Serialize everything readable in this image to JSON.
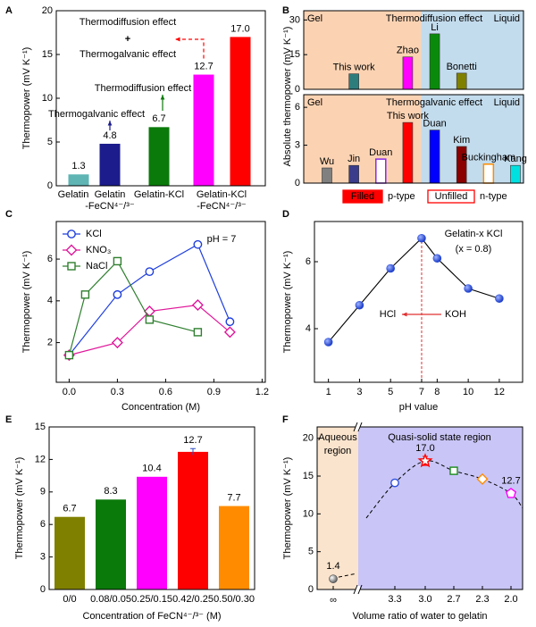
{
  "chart_data": [
    {
      "panel": "A",
      "type": "bar",
      "ylabel": "Thermopower (mV K⁻¹)",
      "categories": [
        [
          "Gelatin"
        ],
        [
          "Gelatin",
          "-FeCN⁴⁻/³⁻"
        ],
        [
          "Gelatin-KCl"
        ],
        [
          "Gelatin-KCl",
          "-FeCN⁴⁻/³⁻"
        ],
        null
      ],
      "values": [
        1.3,
        4.8,
        6.7,
        12.7,
        17.0
      ],
      "value_labels": [
        "1.3",
        "4.8",
        "6.7",
        "12.7",
        "17.0"
      ],
      "colors": [
        "#5fb4b4",
        "#1c1c8c",
        "#0a7a0a",
        "#ff00ff",
        "#ff0000"
      ],
      "ylim": [
        0,
        20
      ],
      "yticks": [
        0,
        5,
        10,
        15,
        20
      ],
      "annotations": [
        {
          "text": "Thermodiffusion effect",
          "color": "#0a7a0a"
        },
        {
          "text": "+",
          "color": "#000000"
        },
        {
          "text": "Thermogalvanic effect",
          "color": "#1c1c8c"
        },
        {
          "text": "Thermodiffusion effect",
          "color": "#0a7a0a"
        },
        {
          "text": "Thermogalvanic effect",
          "color": "#1c1c8c"
        }
      ],
      "arrow_color": "#ff0000"
    },
    {
      "panel": "B",
      "type": "bar",
      "ylabel": "Absolute thermopower (mV K⁻¹)",
      "regions": [
        "Gel",
        "Liquid"
      ],
      "effect": "Thermodiffusion effect",
      "effect_color": "#1a8a1a",
      "categories": [
        null,
        "This work",
        null,
        "Zhao",
        "Li",
        "Bonetti",
        null,
        null
      ],
      "values": [
        null,
        6.7,
        null,
        14,
        24,
        7,
        null,
        null
      ],
      "colors": [
        null,
        "#2e7d7d",
        null,
        "#ff00ff",
        "#0a8a0a",
        "#808000",
        null,
        null
      ],
      "filled": [
        null,
        true,
        null,
        true,
        true,
        true,
        null,
        null
      ],
      "ylim": [
        0,
        34
      ],
      "yticks": [
        0,
        15,
        30
      ]
    },
    {
      "type": "bar",
      "regions": [
        "Gel",
        "Liquid"
      ],
      "effect": "Thermogalvanic effect",
      "effect_color": "#1c1c8c",
      "categories": [
        "Wu",
        "Jin",
        "Duan",
        "This work",
        "Duan",
        "Kim",
        "Buckingham",
        "Kang"
      ],
      "values": [
        1.2,
        1.4,
        1.9,
        4.8,
        4.2,
        2.9,
        1.5,
        1.4
      ],
      "colors": [
        "#808080",
        "#3c3c8c",
        "#8a2be2",
        "#ff0000",
        "#0000ff",
        "#8b0000",
        "#ff8c00",
        "#00e0e0"
      ],
      "filled": [
        true,
        true,
        false,
        true,
        true,
        true,
        false,
        true
      ],
      "ylim": [
        0,
        7
      ],
      "yticks": [
        0,
        3,
        6
      ],
      "legend": [
        {
          "box": "Filled",
          "kind": "p-type"
        },
        {
          "box": "Unfilled",
          "kind": "n-type"
        }
      ],
      "legend_color": "#ff0000"
    },
    {
      "panel": "C",
      "type": "line",
      "xlabel": "Concentration (M)",
      "ylabel": "Thermopower (mV K⁻¹)",
      "xlim": [
        -0.08,
        1.22
      ],
      "ylim": [
        0.1,
        7.8
      ],
      "xticks": [
        {
          "value": 0,
          "label": "0.0"
        },
        0.3,
        0.6,
        0.9,
        1.2
      ],
      "yticks": [
        2,
        4,
        6
      ],
      "annotation": "pH = 7",
      "series": [
        {
          "name": "KCl",
          "color": "#1f3fdd",
          "marker": "circle",
          "x": [
            0,
            0.3,
            0.5,
            0.8,
            1.0
          ],
          "values": [
            1.4,
            4.3,
            5.4,
            6.7,
            3.0
          ]
        },
        {
          "name": "KNO₃",
          "color": "#e0189a",
          "marker": "diamond",
          "x": [
            0,
            0.3,
            0.5,
            0.8,
            1.0
          ],
          "values": [
            1.4,
            2.0,
            3.5,
            3.8,
            2.5
          ]
        },
        {
          "name": "NaCl",
          "color": "#2f7f2f",
          "marker": "square",
          "x": [
            0,
            0.1,
            0.3,
            0.5,
            0.8
          ],
          "values": [
            1.4,
            4.3,
            5.9,
            3.1,
            2.5
          ]
        }
      ]
    },
    {
      "panel": "D",
      "type": "line",
      "xlabel": "pH value",
      "ylabel": "Thermopower (mV K⁻¹)",
      "xlim": [
        0.1,
        13.5
      ],
      "ylim": [
        2.4,
        7.2
      ],
      "xticks": [
        1,
        3,
        5,
        7,
        8,
        10,
        12
      ],
      "yticks": [
        4,
        6
      ],
      "x": [
        1,
        3,
        5,
        7,
        8,
        10,
        12
      ],
      "values": [
        3.6,
        4.7,
        5.8,
        6.7,
        6.1,
        5.2,
        4.9
      ],
      "color": "#2b4fe0",
      "annotations": [
        "Gelatin-x KCl",
        "(x = 0.8)",
        "HCl",
        "KOH"
      ],
      "vline": 7,
      "vline_color": "#e03030"
    },
    {
      "panel": "E",
      "type": "bar",
      "xlabel": "Concentration of FeCN⁴⁻/³⁻ (M)",
      "ylabel": "Thermopower (mV K⁻¹)",
      "categories": [
        "0/0",
        "0.08/0.05",
        "0.25/0.15",
        "0.42/0.25",
        "0.50/0.30"
      ],
      "values": [
        6.7,
        8.3,
        10.4,
        12.7,
        7.7
      ],
      "errors": [
        null,
        null,
        null,
        0.3,
        null
      ],
      "colors": [
        "#808000",
        "#0a7a0a",
        "#ff00ff",
        "#ff0000",
        "#ff8c00"
      ],
      "ylim": [
        0,
        15
      ],
      "yticks": [
        0,
        3,
        6,
        9,
        12,
        15
      ]
    },
    {
      "panel": "F",
      "type": "scatter",
      "xlabel": "Volume ratio of water to gelatin",
      "ylabel": "Thermopower (mV K⁻¹)",
      "categories": [
        "∞",
        "3.3",
        "3.0",
        "2.7",
        "2.3",
        "2.0"
      ],
      "values": [
        1.4,
        14.1,
        17.0,
        15.7,
        14.6,
        12.7
      ],
      "value_labels": [
        "1.4",
        null,
        "17.0",
        null,
        null,
        "12.7"
      ],
      "errors": [
        null,
        null,
        0.6,
        null,
        null,
        null
      ],
      "markers": [
        "sphere",
        "circle",
        "star",
        "square",
        "diamond",
        "pentagon"
      ],
      "colors": [
        "#707070",
        "#2b4fe0",
        "#ff0000",
        "#1a8a1a",
        "#ff8c00",
        "#ff00ff"
      ],
      "regions": [
        [
          "Aqueous",
          "region"
        ],
        "Quasi-solid state region"
      ],
      "ylim": [
        0,
        21.5
      ],
      "yticks": [
        0,
        5,
        10,
        15,
        20
      ]
    }
  ]
}
